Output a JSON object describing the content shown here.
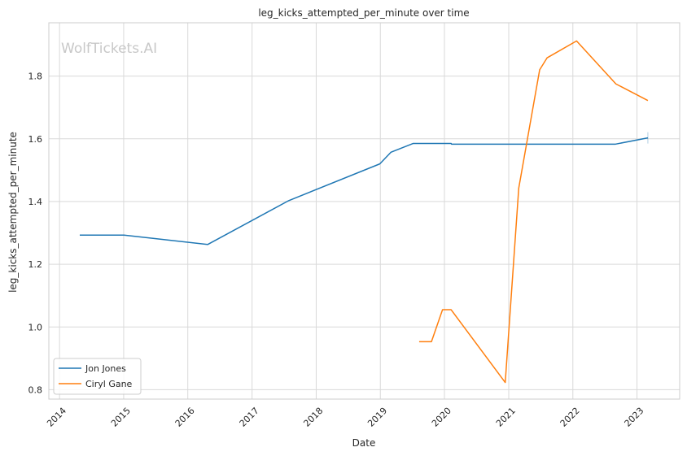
{
  "chart_data": {
    "type": "line",
    "title": "leg_kicks_attempted_per_minute over time",
    "xlabel": "Date",
    "ylabel": "leg_kicks_attempted_per_minute",
    "watermark": "WolfTickets.AI",
    "xlim": [
      "2013-11-01",
      "2023-09-01"
    ],
    "ylim": [
      0.77,
      1.97
    ],
    "x_ticks": [
      "2014",
      "2015",
      "2016",
      "2017",
      "2018",
      "2019",
      "2020",
      "2021",
      "2022",
      "2023"
    ],
    "y_ticks": [
      "0.8",
      "1.0",
      "1.2",
      "1.4",
      "1.6",
      "1.8"
    ],
    "grid": true,
    "legend_position": "bottom-left",
    "series": [
      {
        "name": "Jon Jones",
        "color": "#1f77b4",
        "points": [
          {
            "date": "2014-04-26",
            "value": 1.293
          },
          {
            "date": "2015-01-03",
            "value": 1.293
          },
          {
            "date": "2016-04-23",
            "value": 1.263
          },
          {
            "date": "2017-07-29",
            "value": 1.403
          },
          {
            "date": "2018-12-29",
            "value": 1.52
          },
          {
            "date": "2019-03-02",
            "value": 1.557
          },
          {
            "date": "2019-07-06",
            "value": 1.585
          },
          {
            "date": "2020-02-08",
            "value": 1.585
          },
          {
            "date": "2020-02-10",
            "value": 1.583
          },
          {
            "date": "2022-09-01",
            "value": 1.583
          },
          {
            "date": "2023-03-04",
            "value": 1.603
          }
        ]
      },
      {
        "name": "Ciryl Gane",
        "color": "#ff7f0e",
        "points": [
          {
            "date": "2019-08-10",
            "value": 0.953
          },
          {
            "date": "2019-10-19",
            "value": 0.953
          },
          {
            "date": "2019-12-21",
            "value": 1.055
          },
          {
            "date": "2020-02-08",
            "value": 1.055
          },
          {
            "date": "2020-12-12",
            "value": 0.823
          },
          {
            "date": "2021-02-27",
            "value": 1.443
          },
          {
            "date": "2021-06-26",
            "value": 1.82
          },
          {
            "date": "2021-08-07",
            "value": 1.858
          },
          {
            "date": "2022-01-22",
            "value": 1.912
          },
          {
            "date": "2022-09-03",
            "value": 1.775
          },
          {
            "date": "2023-03-04",
            "value": 1.722
          }
        ]
      }
    ]
  }
}
